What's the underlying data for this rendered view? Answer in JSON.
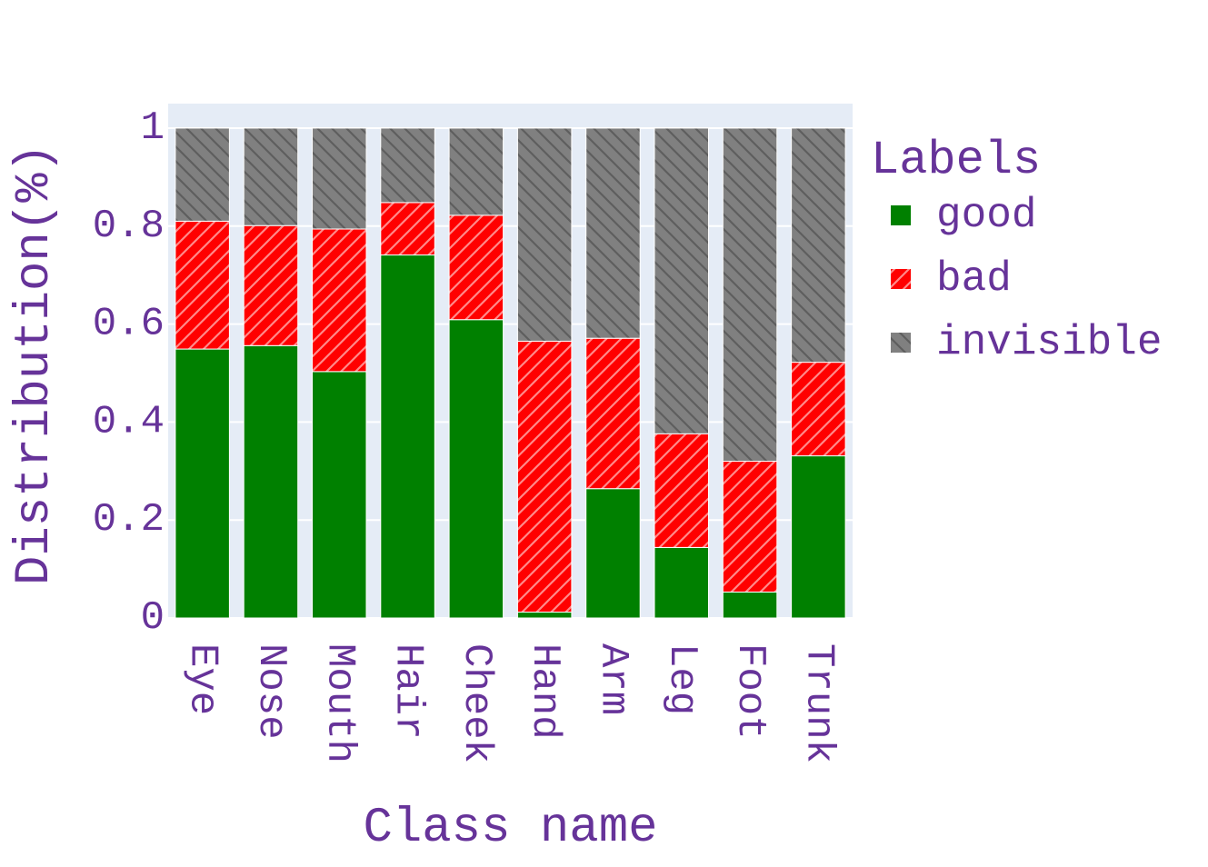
{
  "colors": {
    "text": "#663399",
    "plot_bg": "#e5ecf6",
    "grid": "#ffffff",
    "good": "#008000",
    "bad": "#ff0000",
    "invisible": "#808080"
  },
  "chart_data": {
    "type": "bar",
    "stacked": true,
    "categories": [
      "Eye",
      "Nose",
      "Mouth",
      "Hair",
      "Cheek",
      "Hand",
      "Arm",
      "Leg",
      "Foot",
      "Trunk"
    ],
    "series": [
      {
        "name": "good",
        "pattern": "none",
        "values": [
          0.549,
          0.556,
          0.503,
          0.741,
          0.609,
          0.012,
          0.264,
          0.144,
          0.053,
          0.331
        ]
      },
      {
        "name": "bad",
        "pattern": "diagonal-up",
        "values": [
          0.261,
          0.245,
          0.291,
          0.107,
          0.213,
          0.553,
          0.307,
          0.232,
          0.267,
          0.191
        ]
      },
      {
        "name": "invisible",
        "pattern": "diagonal-down",
        "values": [
          0.19,
          0.199,
          0.206,
          0.152,
          0.178,
          0.435,
          0.429,
          0.624,
          0.68,
          0.478
        ]
      }
    ],
    "xlabel": "Class name",
    "ylabel": "Distribution(%)",
    "yticks": [
      "0",
      "0.2",
      "0.4",
      "0.6",
      "0.8",
      "1"
    ],
    "ylim": [
      0,
      1.05
    ],
    "grid": true,
    "legend": {
      "title": "Labels",
      "position": "right"
    }
  }
}
